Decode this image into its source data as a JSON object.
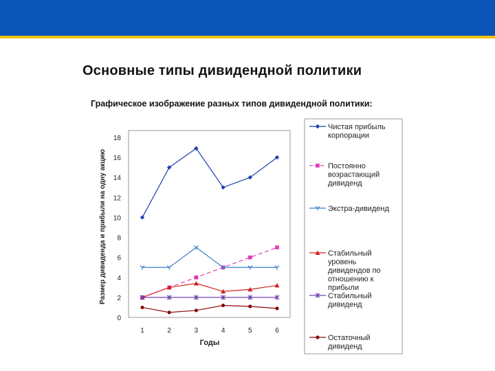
{
  "slide": {
    "title": "Основные типы дивидендной политики",
    "subtitle": "Графическое изображение разных типов дивидендной политики:"
  },
  "colors": {
    "header_band": "#0b55b8",
    "header_line": "#f2c200"
  },
  "chart_data": {
    "type": "line",
    "x": [
      1,
      2,
      3,
      4,
      5,
      6
    ],
    "xlabel": "Годы",
    "ylabel": "Размер дивиденда и прибыли на одну акцию",
    "yticks": [
      "0",
      "2",
      "4",
      "6",
      "8",
      "10",
      "12",
      "14",
      "16",
      "18"
    ],
    "ylim": [
      0,
      18
    ],
    "grid": false,
    "legend_position": "right",
    "series": [
      {
        "name": "Чистая прибыль корпорации",
        "values": [
          10,
          15,
          16.9,
          13,
          14,
          16
        ],
        "color": "#1f3fb0",
        "marker": "diamond",
        "dash": ""
      },
      {
        "name": "Постоянно возрастающий дивиденд",
        "values": [
          2,
          3,
          4,
          5,
          6,
          7
        ],
        "color": "#e03ab8",
        "marker": "square",
        "dash": "6,4"
      },
      {
        "name": "Экстра-дивиденд",
        "values": [
          5,
          5,
          7,
          5,
          5,
          5
        ],
        "color": "#3a7ecc",
        "marker": "tri",
        "dash": ""
      },
      {
        "name": "Стабильный уровень дивидендов по отношению к прибыли",
        "values": [
          2,
          3,
          3.4,
          2.6,
          2.8,
          3.2
        ],
        "color": "#d42020",
        "marker": "triangle",
        "dash": ""
      },
      {
        "name": "Стабильный дивиденд",
        "values": [
          2,
          2,
          2,
          2,
          2,
          2
        ],
        "color": "#7040b0",
        "marker": "asterisk",
        "dash": ""
      },
      {
        "name": "Остаточный дивиденд",
        "values": [
          1,
          0.5,
          0.7,
          1.2,
          1.1,
          0.9
        ],
        "color": "#8b0a0a",
        "marker": "circle",
        "dash": ""
      }
    ]
  }
}
